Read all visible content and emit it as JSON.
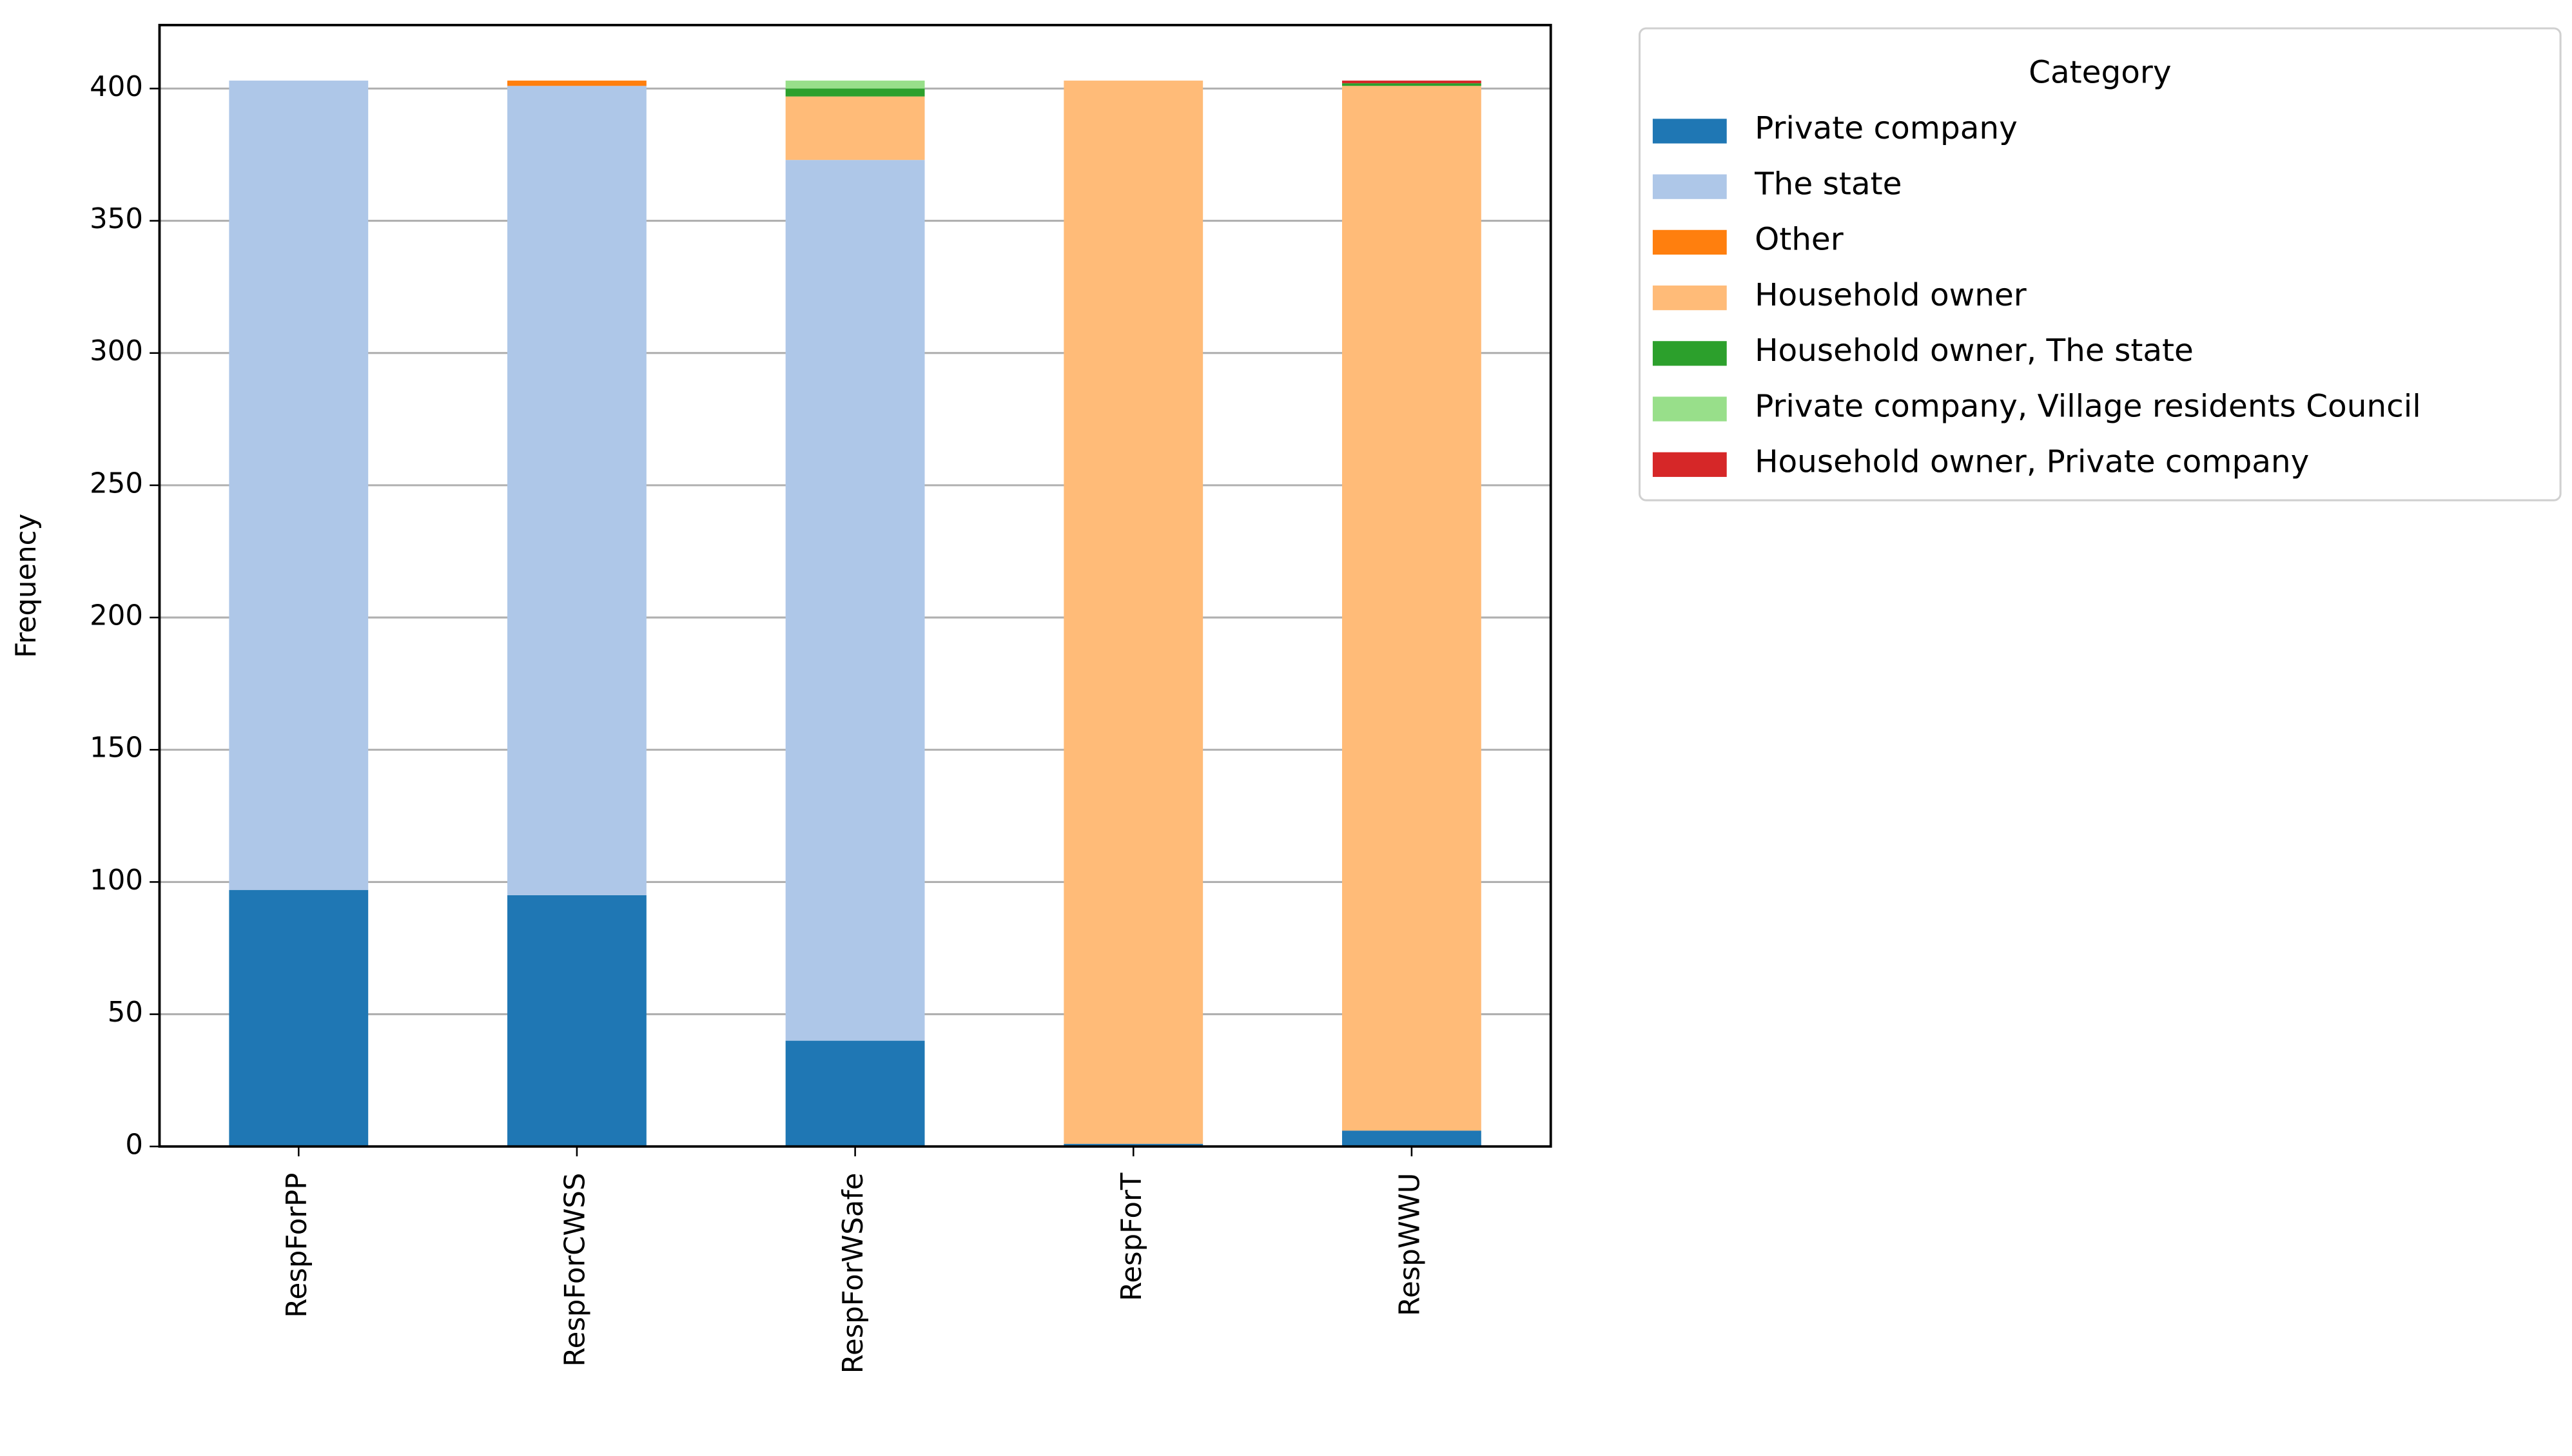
{
  "chart_data": {
    "type": "stacked_bar",
    "y_label": "Frequency",
    "legend_title": "Category",
    "legend_position": "outside upper right",
    "categories": [
      "RespForPP",
      "RespForCWSS",
      "RespForWSafe",
      "RespForT",
      "RespWWU"
    ],
    "series": [
      {
        "name": "Private company",
        "color": "#1f77b4",
        "values": [
          97,
          95,
          40,
          1,
          6
        ]
      },
      {
        "name": "The state",
        "color": "#aec7e8",
        "values": [
          306,
          306,
          333,
          0,
          0
        ]
      },
      {
        "name": "Other",
        "color": "#ff7f0e",
        "values": [
          0,
          2,
          0,
          0,
          0
        ]
      },
      {
        "name": "Household owner",
        "color": "#ffbb78",
        "values": [
          0,
          0,
          24,
          402,
          395
        ]
      },
      {
        "name": "Household owner, The state",
        "color": "#2ca02c",
        "values": [
          0,
          0,
          3,
          0,
          1
        ]
      },
      {
        "name": "Private company, Village residents Council",
        "color": "#98df8a",
        "values": [
          0,
          0,
          3,
          0,
          0
        ]
      },
      {
        "name": "Household owner, Private company",
        "color": "#d62728",
        "values": [
          0,
          0,
          0,
          0,
          1
        ]
      }
    ],
    "ylim": [
      0,
      424
    ],
    "yticks": [
      0,
      50,
      100,
      150,
      200,
      250,
      300,
      350,
      400
    ],
    "grid": true
  }
}
